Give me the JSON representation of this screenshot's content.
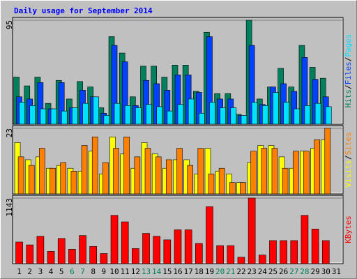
{
  "chart_data": {
    "type": "bar",
    "title": "Daily usage for September 2014",
    "categories": [
      "1",
      "2",
      "3",
      "4",
      "5",
      "6",
      "7",
      "8",
      "9",
      "10",
      "11",
      "12",
      "13",
      "14",
      "15",
      "16",
      "17",
      "18",
      "19",
      "20",
      "21",
      "22",
      "23",
      "24",
      "25",
      "26",
      "27",
      "28",
      "29",
      "30",
      "31"
    ],
    "category_label_colors": [
      "#000000",
      "#000000",
      "#000000",
      "#000000",
      "#000000",
      "#00805c",
      "#00805c",
      "#000000",
      "#000000",
      "#000000",
      "#000000",
      "#000000",
      "#00805c",
      "#00805c",
      "#000000",
      "#000000",
      "#000000",
      "#000000",
      "#000000",
      "#00805c",
      "#00805c",
      "#000000",
      "#000000",
      "#000000",
      "#000000",
      "#000000",
      "#00805c",
      "#00805c",
      "#000000",
      "#000000",
      "#000000"
    ],
    "legend_separator": "/",
    "panels": [
      {
        "ylim": [
          0,
          95
        ],
        "yticks": [
          95
        ],
        "series": [
          {
            "name": "Hits",
            "color": "#00805c",
            "values": [
              43,
              35,
              43,
              19,
              40,
              23,
              39,
              34,
              15,
              80,
              65,
              25,
              53,
              53,
              43,
              54,
              54,
              30,
              84,
              28,
              28,
              9,
              95,
              23,
              34,
              51,
              34,
              72,
              52,
              42,
              null
            ]
          },
          {
            "name": "Files",
            "color": "#0040ff",
            "values": [
              25,
              23,
              38,
              14,
              38,
              15,
              31,
              25,
              10,
              72,
              57,
              17,
              40,
              37,
              31,
              45,
              45,
              29,
              80,
              23,
              23,
              8,
              72,
              18,
              34,
              37,
              30,
              61,
              41,
              25,
              null
            ]
          },
          {
            "name": "Pages",
            "color": "#00e0ff",
            "values": [
              20,
              17,
              14,
              14,
              12,
              15,
              19,
              25,
              8,
              19,
              17,
              15,
              18,
              16,
              12,
              18,
              23,
              10,
              20,
              15,
              15,
              8,
              20,
              17,
              29,
              20,
              14,
              17,
              19,
              16,
              null
            ]
          }
        ]
      },
      {
        "ylim": [
          0,
          23
        ],
        "yticks": [
          23
        ],
        "series": [
          {
            "name": "Visits",
            "color": "#ffff00",
            "values": [
              18,
              12,
              13,
              9,
              10,
              9,
              8,
              15,
              7,
              20,
              14,
              9,
              18,
              14,
              9,
              12,
              12,
              7,
              16,
              8,
              7,
              4,
              11,
              17,
              17,
              13,
              9,
              15,
              16,
              19,
              null
            ]
          },
          {
            "name": "Sites",
            "color": "#ff8000",
            "values": [
              13,
              10,
              16,
              9,
              11,
              8,
              17,
              20,
              11,
              16,
              20,
              13,
              16,
              13,
              12,
              16,
              10,
              16,
              7,
              9,
              4,
              4,
              15,
              16,
              16,
              9,
              15,
              15,
              19,
              23,
              null
            ]
          }
        ]
      },
      {
        "ylim": [
          0,
          1143
        ],
        "yticks": [
          1143
        ],
        "series": [
          {
            "name": "KBytes",
            "color": "#ff0000",
            "values": [
              377,
              327,
              478,
              214,
              440,
              251,
              490,
              301,
              176,
              842,
              729,
              264,
              528,
              478,
              415,
              590,
              590,
              352,
              993,
              314,
              314,
              113,
              1143,
              151,
              402,
              402,
              402,
              842,
              603,
              402,
              null
            ]
          }
        ]
      }
    ]
  }
}
